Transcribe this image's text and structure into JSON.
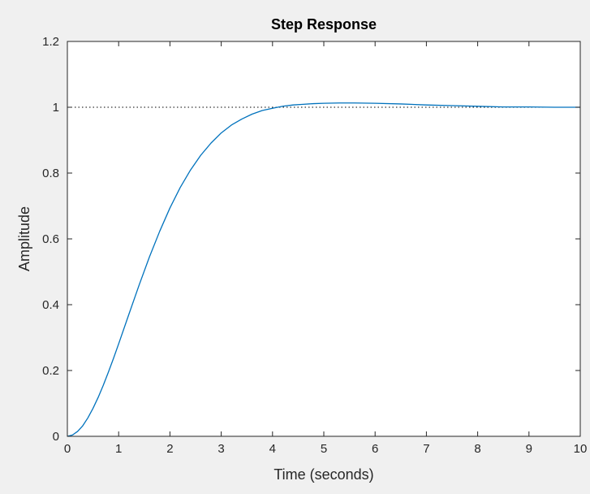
{
  "chart_data": {
    "type": "line",
    "title": "Step Response",
    "xlabel": "Time (seconds)",
    "ylabel": "Amplitude",
    "xlim": [
      0,
      10
    ],
    "ylim": [
      0,
      1.2
    ],
    "x_ticks": [
      0,
      1,
      2,
      3,
      4,
      5,
      6,
      7,
      8,
      9,
      10
    ],
    "x_tick_labels": [
      "0",
      "1",
      "2",
      "3",
      "4",
      "5",
      "6",
      "7",
      "8",
      "9",
      "10"
    ],
    "y_ticks": [
      0,
      0.2,
      0.4,
      0.6,
      0.8,
      1,
      1.2
    ],
    "y_tick_labels": [
      "0",
      "0.2",
      "0.4",
      "0.6",
      "0.8",
      "1",
      "1.2"
    ],
    "grid": false,
    "series": [
      {
        "color": "#0072bd",
        "x": [
          0,
          0.1,
          0.2,
          0.3,
          0.4,
          0.5,
          0.6,
          0.7,
          0.8,
          0.9,
          1.0,
          1.2,
          1.4,
          1.6,
          1.8,
          2.0,
          2.2,
          2.4,
          2.6,
          2.8,
          3.0,
          3.2,
          3.4,
          3.6,
          3.8,
          4.0,
          4.2,
          4.4,
          4.6,
          4.8,
          5.0,
          5.3,
          5.6,
          6.0,
          6.5,
          7.0,
          7.5,
          8.0,
          8.5,
          9.0,
          9.5,
          10.0
        ],
        "y": [
          0,
          0.004,
          0.015,
          0.032,
          0.056,
          0.085,
          0.118,
          0.155,
          0.195,
          0.237,
          0.281,
          0.371,
          0.46,
          0.545,
          0.623,
          0.694,
          0.756,
          0.809,
          0.854,
          0.891,
          0.922,
          0.946,
          0.964,
          0.979,
          0.99,
          0.997,
          1.003,
          1.007,
          1.009,
          1.011,
          1.012,
          1.013,
          1.013,
          1.012,
          1.01,
          1.007,
          1.005,
          1.003,
          1.001,
          1.001,
          1.0,
          1.0
        ]
      }
    ],
    "reference_line": {
      "y": 1,
      "style": "dotted",
      "color": "#000000"
    }
  }
}
